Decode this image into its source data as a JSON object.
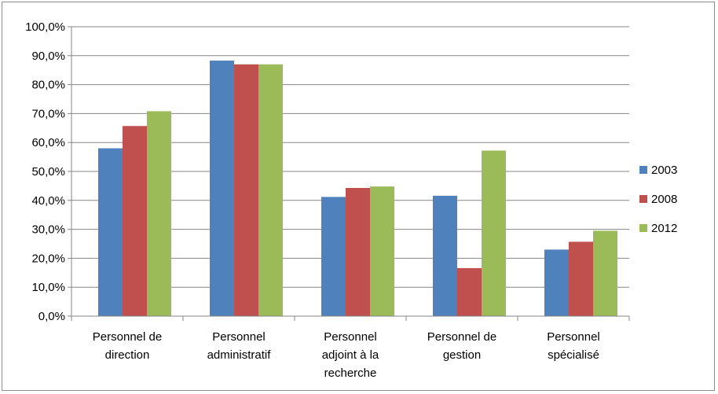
{
  "chart_data": {
    "type": "bar",
    "categories": [
      [
        "Personnel de",
        "direction"
      ],
      [
        "Personnel",
        "administratif"
      ],
      [
        "Personnel",
        "adjoint à la",
        "recherche"
      ],
      [
        "Personnel de",
        "gestion"
      ],
      [
        "Personnel",
        "spécialisé"
      ]
    ],
    "series": [
      {
        "name": "2003",
        "color": "#4f81bd",
        "values": [
          58.0,
          88.3,
          41.2,
          41.6,
          23.0
        ]
      },
      {
        "name": "2008",
        "color": "#c0504d",
        "values": [
          65.7,
          87.0,
          44.3,
          16.6,
          25.7
        ]
      },
      {
        "name": "2012",
        "color": "#9bbb59",
        "values": [
          70.8,
          87.0,
          44.8,
          57.2,
          29.5
        ]
      }
    ],
    "ylim": [
      0,
      100
    ],
    "ytick_step": 10,
    "ytick_labels": [
      "0,0%",
      "10,0%",
      "20,0%",
      "30,0%",
      "40,0%",
      "50,0%",
      "60,0%",
      "70,0%",
      "80,0%",
      "90,0%",
      "100,0%"
    ],
    "grid": true,
    "legend_position": "right"
  }
}
